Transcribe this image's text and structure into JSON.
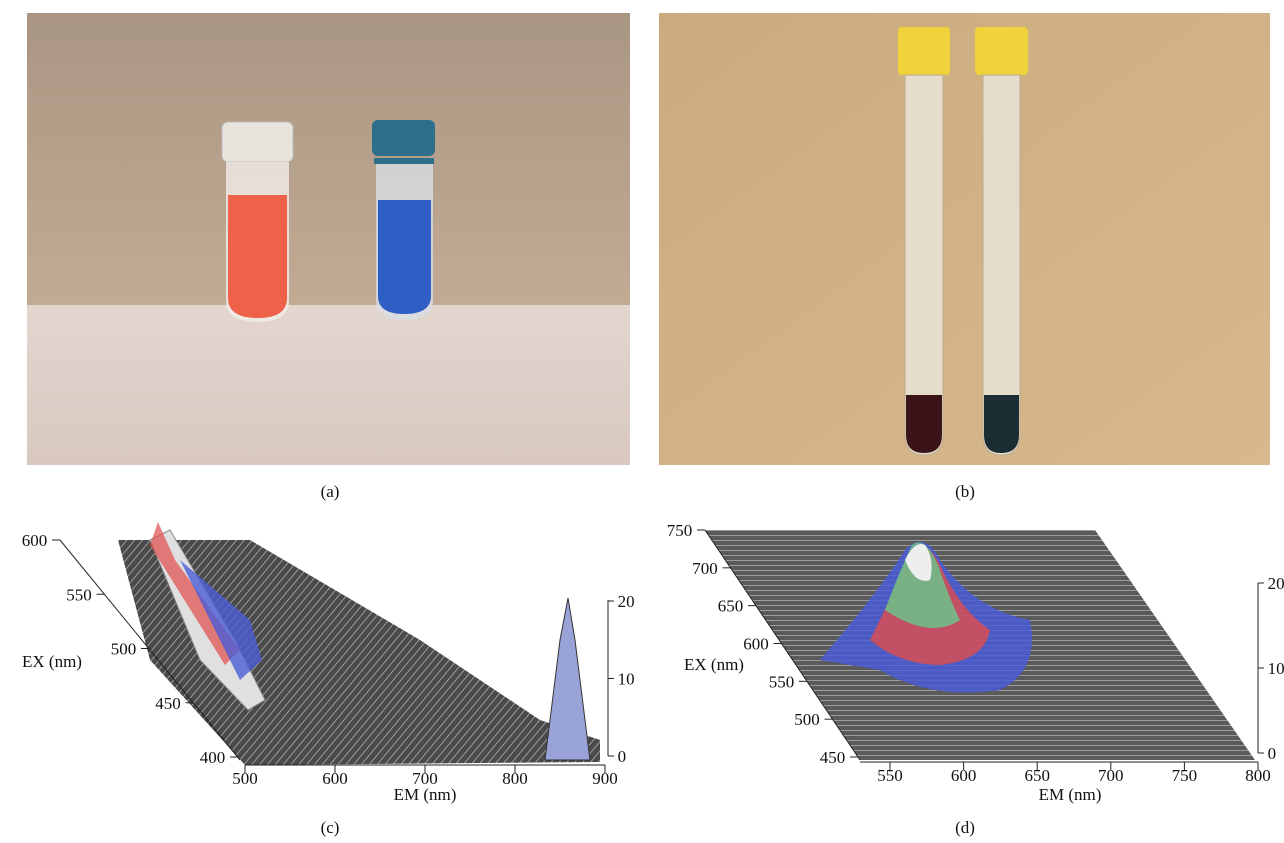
{
  "panels": [
    {
      "label": "(a)"
    },
    {
      "label": "(b)"
    },
    {
      "label": "(c)",
      "ex_label": "EX (nm)",
      "em_label": "EM (nm)",
      "ex_ticks": [
        600,
        550,
        500,
        450,
        400
      ],
      "em_ticks": [
        500,
        600,
        700,
        800,
        900
      ],
      "z_ticks": [
        20,
        10,
        0
      ]
    },
    {
      "label": "(d)",
      "ex_label": "EX (nm)",
      "em_label": "EM (nm)",
      "ex_ticks": [
        750,
        700,
        650,
        600,
        550,
        500,
        450
      ],
      "em_ticks": [
        550,
        600,
        650,
        700,
        750,
        800
      ],
      "z_ticks": [
        20,
        10,
        0
      ]
    }
  ]
}
